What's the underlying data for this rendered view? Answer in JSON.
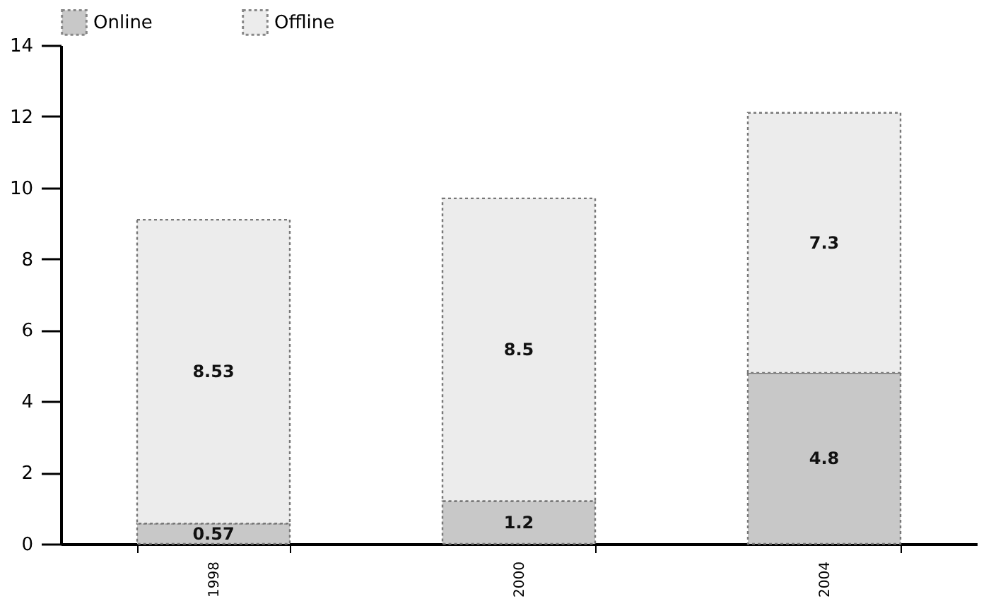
{
  "chart_data": {
    "type": "bar",
    "stacked": true,
    "categories": [
      "1998",
      "2000",
      "2004"
    ],
    "series": [
      {
        "name": "Online",
        "color": "#c8c8c8",
        "values": [
          0.57,
          1.2,
          4.8
        ]
      },
      {
        "name": "Offline",
        "color": "#ececec",
        "values": [
          8.53,
          8.5,
          7.3
        ]
      }
    ],
    "ylim": [
      0,
      14
    ],
    "yticks": [
      0,
      2,
      4,
      6,
      8,
      10,
      12,
      14
    ],
    "grid": false,
    "legend": "top left",
    "data_labels": true
  }
}
